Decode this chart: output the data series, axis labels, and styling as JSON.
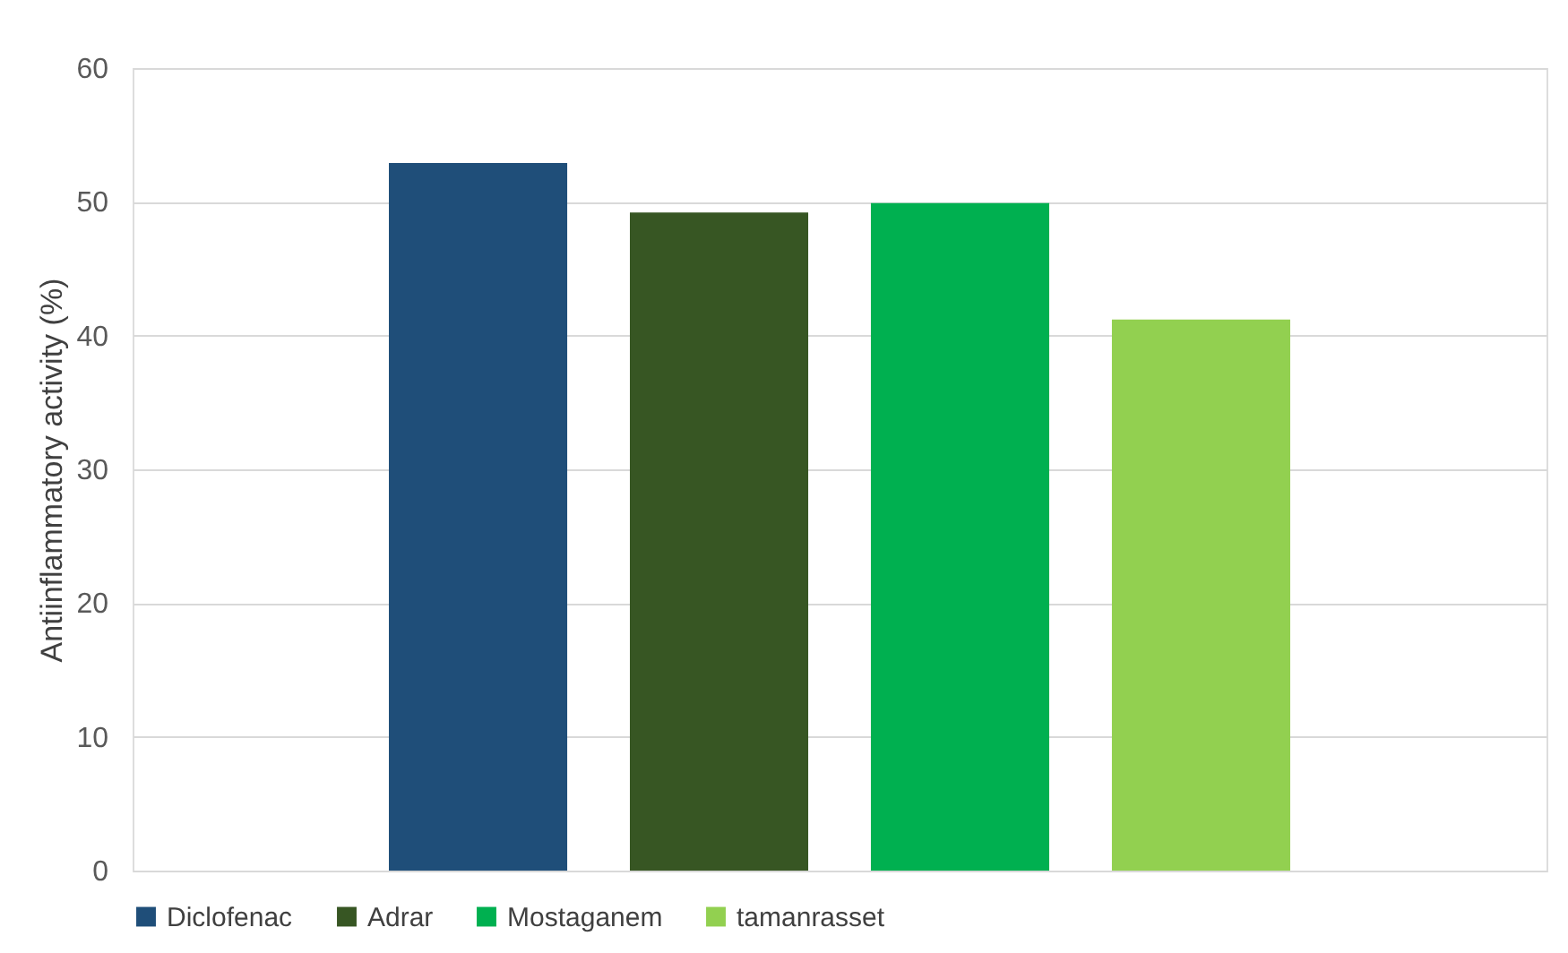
{
  "chart_data": {
    "type": "bar",
    "categories": [
      null
    ],
    "ylabel": "Antiinflammatory activity (%)",
    "ylim": [
      0,
      60
    ],
    "yticks": [
      0,
      10,
      20,
      30,
      40,
      50,
      60
    ],
    "grid": "y",
    "legend": "bottom",
    "tick_labels": "y",
    "series": [
      {
        "name": "Diclofenac",
        "color": "#1f4e79",
        "values": [
          52.9
        ]
      },
      {
        "name": "Adrar",
        "color": "#375623",
        "values": [
          49.2
        ]
      },
      {
        "name": "Mostaganem",
        "color": "#00b050",
        "values": [
          49.9
        ]
      },
      {
        "name": "tamanrasset",
        "color": "#92d050",
        "values": [
          41.2
        ]
      }
    ]
  }
}
